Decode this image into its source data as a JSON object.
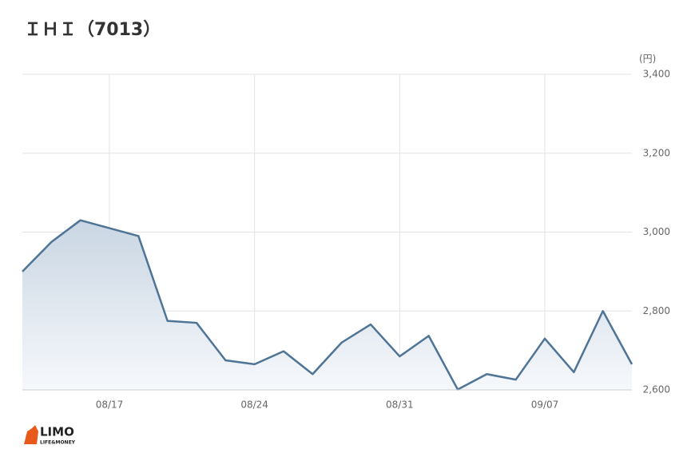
{
  "chart_data": {
    "type": "line",
    "title": "ＩＨＩ（7013）",
    "unit": "(円)",
    "categories": [
      null,
      null,
      null,
      "08/17",
      null,
      null,
      null,
      null,
      "08/24",
      null,
      null,
      null,
      null,
      "08/31",
      null,
      null,
      null,
      null,
      "09/07",
      null,
      null,
      null
    ],
    "series": [
      {
        "name": "IHI",
        "color": "#4e7496",
        "values": [
          2900,
          2975,
          3030,
          3010,
          2990,
          2775,
          2770,
          2675,
          2665,
          2698,
          2640,
          2720,
          2766,
          2685,
          2737,
          2601,
          2640,
          2626,
          2730,
          2645,
          2800,
          2665
        ]
      }
    ],
    "ylim": [
      2600,
      3400
    ],
    "yticks": [
      {
        "value": 2600,
        "label": "2,600"
      },
      {
        "value": 2800,
        "label": "2,800"
      },
      {
        "value": 3000,
        "label": "3,000"
      },
      {
        "value": 3200,
        "label": "3,200"
      },
      {
        "value": 3400,
        "label": "3,400"
      }
    ],
    "grid": true
  },
  "logo": {
    "name": "LIMO",
    "tagline": "LIFE&MONEY"
  }
}
